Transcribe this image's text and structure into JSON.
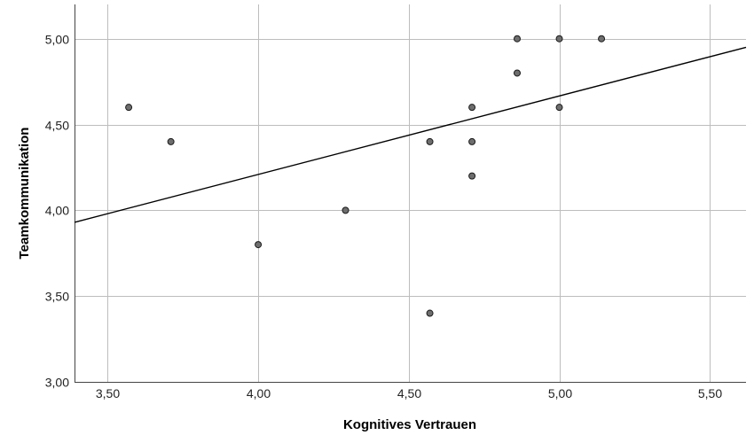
{
  "chart_data": {
    "type": "scatter",
    "xlabel": "Kognitives Vertrauen",
    "ylabel": "Teamkommunikation",
    "xlim": [
      3.39,
      5.62
    ],
    "ylim": [
      3.0,
      5.2
    ],
    "xticks": [
      3.5,
      4.0,
      4.5,
      5.0,
      5.5
    ],
    "xtick_labels": [
      "3,50",
      "4,00",
      "4,50",
      "5,00",
      "5,50"
    ],
    "yticks": [
      3.0,
      3.5,
      4.0,
      4.5,
      5.0
    ],
    "ytick_labels": [
      "3,00",
      "3,50",
      "4,00",
      "4,50",
      "5,00"
    ],
    "grid": true,
    "points": [
      {
        "x": 3.57,
        "y": 4.6
      },
      {
        "x": 3.71,
        "y": 4.4
      },
      {
        "x": 4.0,
        "y": 3.8
      },
      {
        "x": 4.29,
        "y": 4.0
      },
      {
        "x": 4.57,
        "y": 4.4
      },
      {
        "x": 4.57,
        "y": 3.4
      },
      {
        "x": 4.71,
        "y": 4.6
      },
      {
        "x": 4.71,
        "y": 4.4
      },
      {
        "x": 4.71,
        "y": 4.2
      },
      {
        "x": 4.86,
        "y": 5.0
      },
      {
        "x": 4.86,
        "y": 4.8
      },
      {
        "x": 5.0,
        "y": 5.0
      },
      {
        "x": 5.0,
        "y": 4.6
      },
      {
        "x": 5.14,
        "y": 5.0
      }
    ],
    "fit_line": {
      "x": [
        3.39,
        5.62
      ],
      "y": [
        3.93,
        4.95
      ]
    }
  }
}
